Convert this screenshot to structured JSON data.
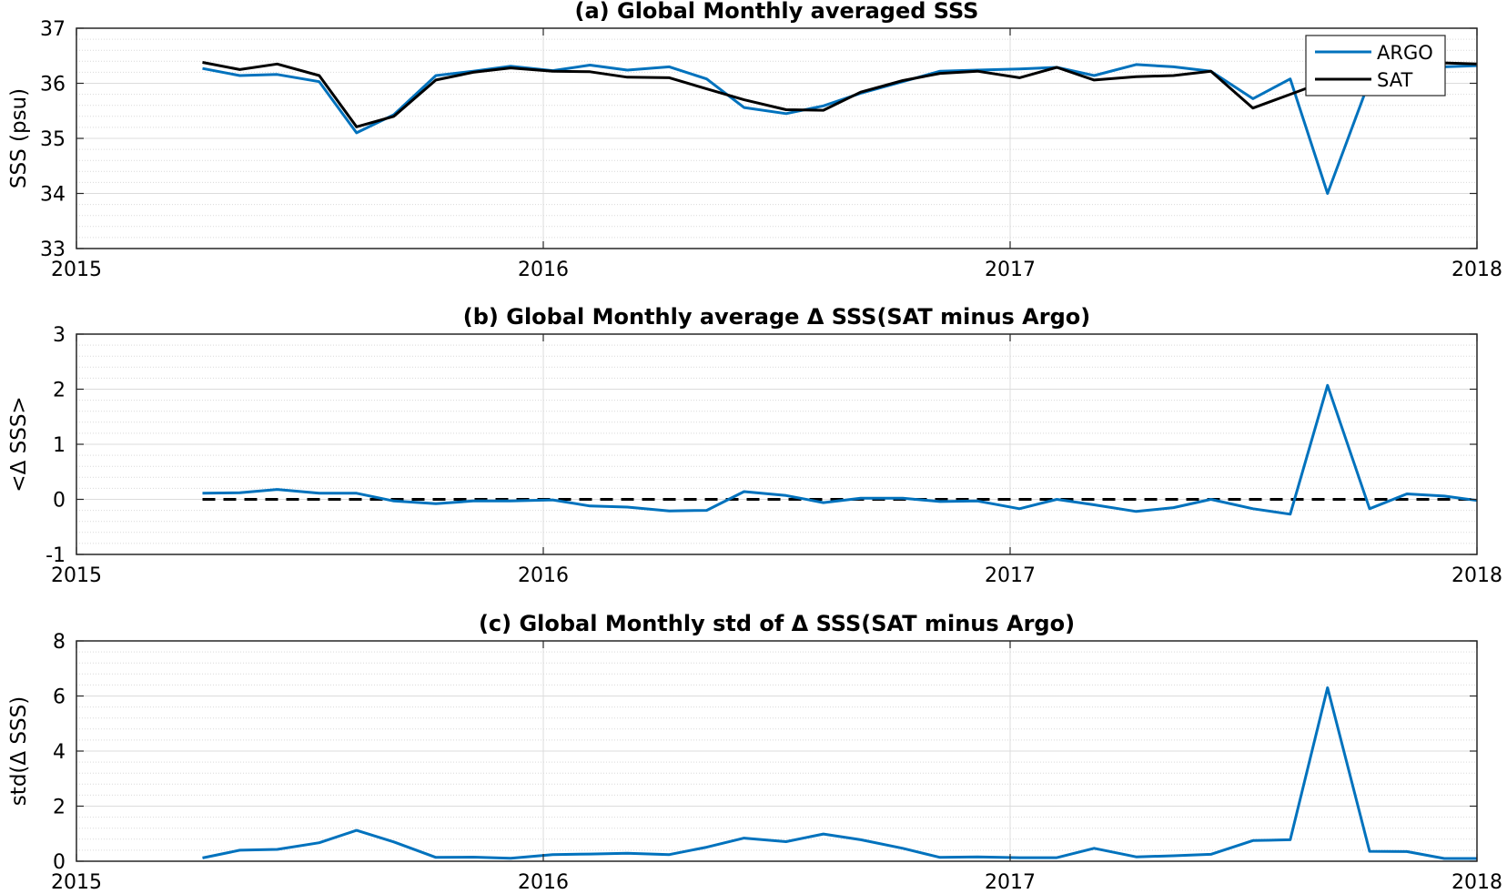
{
  "chart_data": [
    {
      "type": "line",
      "title": "(a) Global Monthly averaged SSS",
      "xlabel": "",
      "ylabel": "SSS (psu)",
      "xlim": [
        2015,
        2018
      ],
      "ylim": [
        33,
        37
      ],
      "xticks": [
        "2015",
        "2016",
        "2017",
        "2018"
      ],
      "yticks": [
        "33",
        "34",
        "35",
        "36",
        "37"
      ],
      "grid": true,
      "legend": "top-right",
      "x": [
        2015.27,
        2015.35,
        2015.43,
        2015.52,
        2015.6,
        2015.68,
        2015.77,
        2015.85,
        2015.93,
        2016.02,
        2016.1,
        2016.18,
        2016.27,
        2016.35,
        2016.43,
        2016.52,
        2016.6,
        2016.68,
        2016.77,
        2016.85,
        2016.93,
        2017.02,
        2017.1,
        2017.18,
        2017.27,
        2017.35,
        2017.43,
        2017.52,
        2017.6,
        2017.68,
        2017.77,
        2017.85,
        2017.93,
        2018.0
      ],
      "series": [
        {
          "name": "ARGO",
          "color": "#0072BD",
          "values": [
            36.27,
            36.14,
            36.16,
            36.03,
            35.1,
            35.43,
            36.14,
            36.22,
            36.31,
            36.23,
            36.33,
            36.24,
            36.3,
            36.08,
            35.56,
            35.45,
            35.59,
            35.82,
            36.03,
            36.22,
            36.24,
            36.26,
            36.29,
            36.14,
            36.34,
            36.3,
            36.22,
            35.72,
            36.08,
            34.0,
            36.05,
            36.25,
            36.3,
            36.32
          ]
        },
        {
          "name": "SAT",
          "color": "#000000",
          "values": [
            36.38,
            36.25,
            36.35,
            36.14,
            35.21,
            35.4,
            36.06,
            36.2,
            36.28,
            36.22,
            36.21,
            36.11,
            36.1,
            35.9,
            35.7,
            35.52,
            35.51,
            35.84,
            36.05,
            36.18,
            36.22,
            36.1,
            36.29,
            36.06,
            36.12,
            36.14,
            36.22,
            35.55,
            35.8,
            36.05,
            36.1,
            36.25,
            36.37,
            36.35
          ]
        }
      ]
    },
    {
      "type": "line",
      "title": "(b) Global Monthly average Δ SSS(SAT minus Argo)",
      "xlabel": "",
      "ylabel": "<Δ SSS>",
      "xlim": [
        2015,
        2018
      ],
      "ylim": [
        -1,
        3
      ],
      "xticks": [
        "2015",
        "2016",
        "2017",
        "2018"
      ],
      "yticks": [
        "-1",
        "0",
        "1",
        "2",
        "3"
      ],
      "grid": true,
      "reference_line": 0,
      "x": [
        2015.27,
        2015.35,
        2015.43,
        2015.52,
        2015.6,
        2015.68,
        2015.77,
        2015.85,
        2015.93,
        2016.02,
        2016.1,
        2016.18,
        2016.27,
        2016.35,
        2016.43,
        2016.52,
        2016.6,
        2016.68,
        2016.77,
        2016.85,
        2016.93,
        2017.02,
        2017.1,
        2017.18,
        2017.27,
        2017.35,
        2017.43,
        2017.52,
        2017.6,
        2017.68,
        2017.77,
        2017.85,
        2017.93,
        2018.0
      ],
      "series": [
        {
          "color": "#0072BD",
          "values": [
            0.11,
            0.12,
            0.18,
            0.11,
            0.11,
            -0.03,
            -0.08,
            -0.03,
            -0.03,
            -0.01,
            -0.12,
            -0.14,
            -0.21,
            -0.2,
            0.14,
            0.07,
            -0.06,
            0.02,
            0.02,
            -0.04,
            -0.03,
            -0.17,
            0.0,
            -0.1,
            -0.22,
            -0.15,
            0.0,
            -0.17,
            -0.27,
            2.07,
            -0.17,
            0.1,
            0.06,
            -0.02
          ]
        }
      ]
    },
    {
      "type": "line",
      "title": "(c) Global Monthly std of Δ SSS(SAT minus Argo)",
      "xlabel": "",
      "ylabel": "std(Δ SSS)",
      "xlim": [
        2015,
        2018
      ],
      "ylim": [
        0,
        8
      ],
      "xticks": [
        "2015",
        "2016",
        "2017",
        "2018"
      ],
      "yticks": [
        "0",
        "2",
        "4",
        "6",
        "8"
      ],
      "grid": true,
      "x": [
        2015.27,
        2015.35,
        2015.43,
        2015.52,
        2015.6,
        2015.68,
        2015.77,
        2015.85,
        2015.93,
        2016.02,
        2016.1,
        2016.18,
        2016.27,
        2016.35,
        2016.43,
        2016.52,
        2016.6,
        2016.68,
        2016.77,
        2016.85,
        2016.93,
        2017.02,
        2017.1,
        2017.18,
        2017.27,
        2017.35,
        2017.43,
        2017.52,
        2017.6,
        2017.68,
        2017.77,
        2017.85,
        2017.93,
        2018.0
      ],
      "series": [
        {
          "color": "#0072BD",
          "values": [
            0.12,
            0.4,
            0.43,
            0.67,
            1.12,
            0.7,
            0.14,
            0.15,
            0.11,
            0.24,
            0.26,
            0.29,
            0.24,
            0.51,
            0.84,
            0.71,
            0.99,
            0.78,
            0.47,
            0.14,
            0.16,
            0.13,
            0.13,
            0.47,
            0.16,
            0.2,
            0.25,
            0.75,
            0.78,
            6.3,
            0.36,
            0.35,
            0.1,
            0.1
          ]
        }
      ]
    }
  ]
}
